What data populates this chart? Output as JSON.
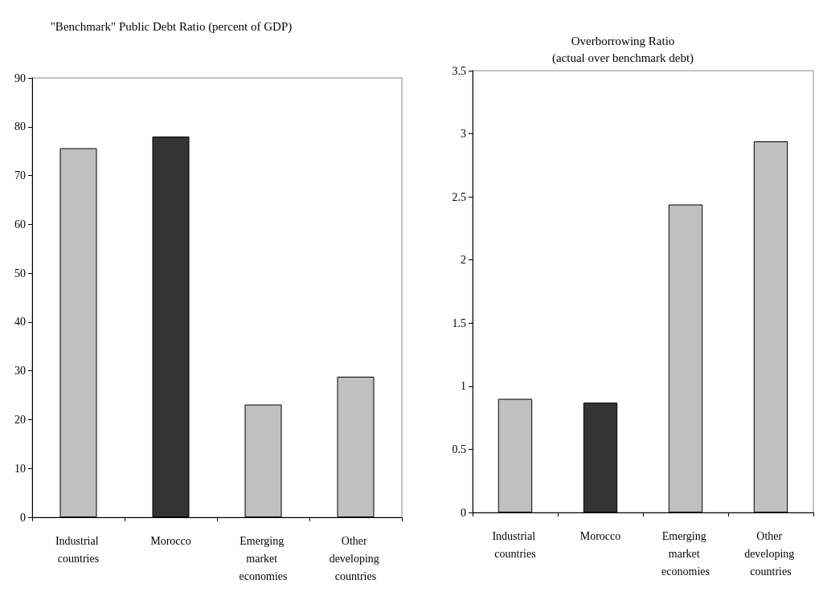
{
  "chart_data": [
    {
      "type": "bar",
      "title": "\"Benchmark\" Public Debt Ratio (percent of GDP)",
      "categories": [
        "Industrial countries",
        "Morocco",
        "Emerging market economies",
        "Other developing countries"
      ],
      "values": [
        75.6,
        78.0,
        23.1,
        28.8
      ],
      "colors": [
        "#c0c0c0",
        "#333333",
        "#c0c0c0",
        "#c0c0c0"
      ],
      "ylim": [
        0,
        90
      ],
      "yticks": [
        0,
        10,
        20,
        30,
        40,
        50,
        60,
        70,
        80,
        90
      ],
      "grid": false
    },
    {
      "type": "bar",
      "title": "Overborrowing Ratio",
      "subtitle": "(actual over benchmark debt)",
      "categories": [
        "Industrial countries",
        "Morocco",
        "Emerging market economies",
        "Other developing countries"
      ],
      "values": [
        0.9,
        0.87,
        2.44,
        2.94
      ],
      "colors": [
        "#c0c0c0",
        "#333333",
        "#c0c0c0",
        "#c0c0c0"
      ],
      "ylim": [
        0,
        3.5
      ],
      "yticks": [
        0,
        0.5,
        1,
        1.5,
        2,
        2.5,
        3,
        3.5
      ],
      "grid": false
    }
  ]
}
